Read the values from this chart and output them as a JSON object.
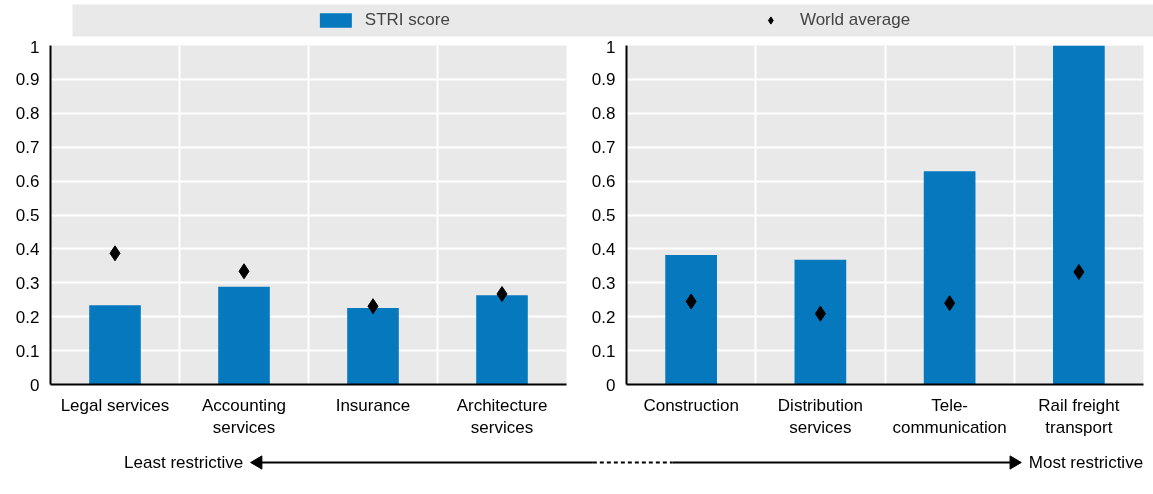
{
  "chart_data": [
    {
      "type": "bar",
      "categories": [
        "Legal services",
        "Accounting\nservices",
        "Insurance",
        "Architecture\nservices"
      ],
      "series": [
        {
          "name": "STRI score",
          "color": "#0578be",
          "values": [
            0.234,
            0.288,
            0.226,
            0.263
          ]
        },
        {
          "name": "World average",
          "type": "scatter",
          "marker": "diamond",
          "color": "#000000",
          "values": [
            0.387,
            0.334,
            0.231,
            0.267
          ]
        }
      ],
      "ylim": [
        0,
        1
      ],
      "yticks": [
        0,
        0.1,
        0.2,
        0.3,
        0.4,
        0.5,
        0.6,
        0.7,
        0.8,
        0.9,
        1
      ],
      "grid": true,
      "legend": "top",
      "annotations": [
        "Least restrictive",
        "Most restrictive"
      ]
    },
    {
      "type": "bar",
      "categories": [
        "Construction",
        "Distribution\nservices",
        "Tele-\ncommunication",
        "Rail freight\ntransport"
      ],
      "series": [
        {
          "color": "#0578be",
          "values": [
            0.382,
            0.368,
            0.629,
            1.0
          ]
        },
        {
          "type": "scatter",
          "marker": "diamond",
          "color": "#000000",
          "values": [
            0.245,
            0.209,
            0.24,
            0.332
          ]
        }
      ],
      "ylim": [
        0,
        1
      ],
      "yticks": [
        0,
        0.1,
        0.2,
        0.3,
        0.4,
        0.5,
        0.6,
        0.7,
        0.8,
        0.9,
        1
      ],
      "grid": true
    }
  ]
}
